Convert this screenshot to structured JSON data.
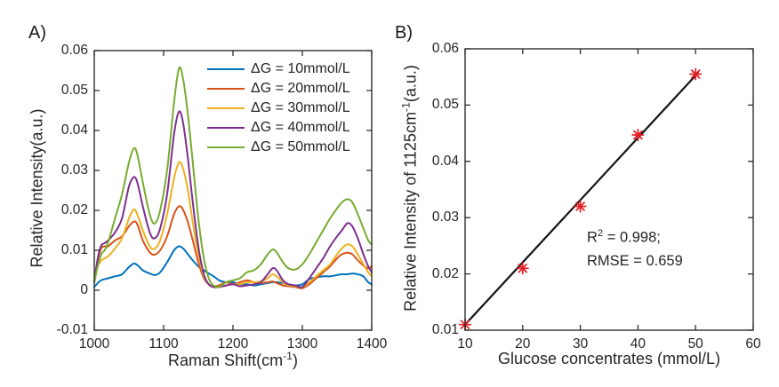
{
  "panels": {
    "a_label": "A)",
    "b_label": "B)"
  },
  "colors": {
    "axis": "#2e2e2e",
    "text": "#262626",
    "fit_line": "#121212",
    "marker_red": "#e41e25",
    "series_blue": "#0072BD",
    "series_orange": "#D95319",
    "series_yellow": "#EDB120",
    "series_purple": "#7E2F8E",
    "series_green": "#77AC30"
  },
  "chart_data": [
    {
      "id": "panel_a",
      "type": "line",
      "xlabel": "Raman Shift(cm⁻¹)",
      "xlabel_parts": {
        "pre": "Raman Shift(cm",
        "sup": "-1",
        "post": ")"
      },
      "ylabel": "Relative Intensity(a.u.)",
      "xlim": [
        1000,
        1400
      ],
      "ylim": [
        -0.01,
        0.06
      ],
      "xticks": [
        1000,
        1100,
        1200,
        1300,
        1400
      ],
      "xtick_labels": [
        "1000",
        "1100",
        "1200",
        "1300",
        "1400"
      ],
      "yticks": [
        -0.01,
        0,
        0.01,
        0.02,
        0.03,
        0.04,
        0.05,
        0.06
      ],
      "ytick_labels": [
        "-0.01",
        "0",
        "0.01",
        "0.02",
        "0.03",
        "0.04",
        "0.05",
        "0.06"
      ],
      "grid": false,
      "legend_position": "upper-right-inside",
      "x": [
        1000,
        1005,
        1010,
        1015,
        1020,
        1030,
        1040,
        1050,
        1057,
        1062,
        1070,
        1080,
        1087,
        1095,
        1105,
        1115,
        1122,
        1128,
        1135,
        1142,
        1150,
        1158,
        1165,
        1172,
        1180,
        1190,
        1200,
        1210,
        1220,
        1230,
        1240,
        1250,
        1257,
        1263,
        1272,
        1280,
        1290,
        1300,
        1310,
        1320,
        1330,
        1340,
        1350,
        1357,
        1365,
        1372,
        1380,
        1388,
        1395,
        1400
      ],
      "series": [
        {
          "name": "ΔG = 10mmol/L",
          "color": "#0072BD",
          "values": [
            0.0008,
            0.0018,
            0.0025,
            0.0028,
            0.003,
            0.0035,
            0.004,
            0.0058,
            0.0067,
            0.0063,
            0.005,
            0.0042,
            0.0038,
            0.0045,
            0.007,
            0.01,
            0.011,
            0.0105,
            0.009,
            0.0075,
            0.006,
            0.005,
            0.0042,
            0.0035,
            0.0025,
            0.002,
            0.002,
            0.0015,
            0.0015,
            0.0012,
            0.0015,
            0.0018,
            0.002,
            0.002,
            0.0018,
            0.0015,
            0.0012,
            0.0015,
            0.0028,
            0.0032,
            0.0035,
            0.0035,
            0.0038,
            0.004,
            0.004,
            0.0042,
            0.004,
            0.0035,
            0.002,
            0.0015
          ]
        },
        {
          "name": "ΔG = 20mmol/L",
          "color": "#D95319",
          "values": [
            0.002,
            0.0075,
            0.0105,
            0.011,
            0.011,
            0.0125,
            0.0135,
            0.016,
            0.0172,
            0.0165,
            0.0125,
            0.0095,
            0.0089,
            0.01,
            0.0135,
            0.019,
            0.021,
            0.0202,
            0.017,
            0.0125,
            0.007,
            0.003,
            0.0015,
            0.001,
            0.0012,
            0.002,
            0.0015,
            0.002,
            0.0025,
            0.002,
            0.0018,
            0.002,
            0.0022,
            0.0018,
            0.0012,
            0.001,
            0.0008,
            0.0005,
            0.0015,
            0.003,
            0.0045,
            0.006,
            0.008,
            0.009,
            0.0094,
            0.009,
            0.0075,
            0.0062,
            0.0055,
            0.006
          ]
        },
        {
          "name": "ΔG = 30mmol/L",
          "color": "#EDB120",
          "values": [
            0.0035,
            0.006,
            0.0075,
            0.008,
            0.0085,
            0.0105,
            0.013,
            0.018,
            0.0202,
            0.019,
            0.015,
            0.011,
            0.0104,
            0.0125,
            0.019,
            0.028,
            0.032,
            0.0305,
            0.025,
            0.017,
            0.009,
            0.0035,
            0.0015,
            0.0008,
            0.0008,
            0.0012,
            0.0015,
            0.0015,
            0.002,
            0.002,
            0.0022,
            0.003,
            0.004,
            0.0035,
            0.002,
            0.0012,
            0.001,
            0.0008,
            0.002,
            0.0035,
            0.005,
            0.0065,
            0.009,
            0.0105,
            0.0115,
            0.011,
            0.009,
            0.0065,
            0.0045,
            0.0035
          ]
        },
        {
          "name": "ΔG = 40mmol/L",
          "color": "#7E2F8E",
          "values": [
            0.002,
            0.008,
            0.0112,
            0.0118,
            0.0125,
            0.0145,
            0.018,
            0.026,
            0.0283,
            0.027,
            0.021,
            0.0145,
            0.013,
            0.0155,
            0.024,
            0.039,
            0.0447,
            0.042,
            0.033,
            0.022,
            0.011,
            0.004,
            0.0015,
            0.0008,
            0.0008,
            0.0012,
            0.0015,
            0.001,
            0.0012,
            0.0015,
            0.002,
            0.004,
            0.0055,
            0.005,
            0.0025,
            0.0015,
            0.0012,
            0.0008,
            0.003,
            0.0055,
            0.008,
            0.011,
            0.0135,
            0.015,
            0.0168,
            0.016,
            0.013,
            0.009,
            0.006,
            0.0045
          ]
        },
        {
          "name": "ΔG = 50mmol/L",
          "color": "#77AC30",
          "values": [
            0.002,
            0.006,
            0.009,
            0.01,
            0.012,
            0.018,
            0.024,
            0.032,
            0.0355,
            0.034,
            0.027,
            0.019,
            0.0167,
            0.02,
            0.03,
            0.047,
            0.0555,
            0.053,
            0.044,
            0.032,
            0.018,
            0.008,
            0.003,
            0.0012,
            0.0008,
            0.002,
            0.0025,
            0.003,
            0.0045,
            0.005,
            0.0065,
            0.009,
            0.0102,
            0.0095,
            0.007,
            0.0055,
            0.0052,
            0.0065,
            0.009,
            0.012,
            0.015,
            0.018,
            0.0205,
            0.022,
            0.0228,
            0.022,
            0.019,
            0.0155,
            0.0125,
            0.0115
          ]
        }
      ]
    },
    {
      "id": "panel_b",
      "type": "scatter",
      "xlabel": "Glucose concentrates (mmol/L)",
      "ylabel": "Relative Intensity of 1125cm⁻¹(a.u.)",
      "ylabel_parts": {
        "pre": "Relative Intensity of 1125cm",
        "sup": "-1",
        "post": "(a.u.)"
      },
      "xlim": [
        10,
        60
      ],
      "ylim": [
        0.01,
        0.06
      ],
      "xticks": [
        10,
        20,
        30,
        40,
        50,
        60
      ],
      "xtick_labels": [
        "10",
        "20",
        "30",
        "40",
        "50",
        "60"
      ],
      "yticks": [
        0.01,
        0.02,
        0.03,
        0.04,
        0.05,
        0.06
      ],
      "ytick_labels": [
        "0.01",
        "0.02",
        "0.03",
        "0.04",
        "0.05",
        "0.06"
      ],
      "grid": false,
      "points": {
        "x": [
          10,
          20,
          30,
          40,
          50
        ],
        "y": [
          0.011,
          0.021,
          0.032,
          0.0447,
          0.0555
        ]
      },
      "marker": {
        "style": "asterisk",
        "color": "#e41e25"
      },
      "fit_line": {
        "x1": 10,
        "y1": 0.011,
        "x2": 50.5,
        "y2": 0.0558,
        "color": "#121212"
      },
      "annotation": {
        "r_squared": 0.998,
        "rmse": 0.659,
        "line1_pre": "R",
        "line1_sup": "2",
        "line1_post": " = 0.998;",
        "line2": "RMSE = 0.659"
      }
    }
  ]
}
